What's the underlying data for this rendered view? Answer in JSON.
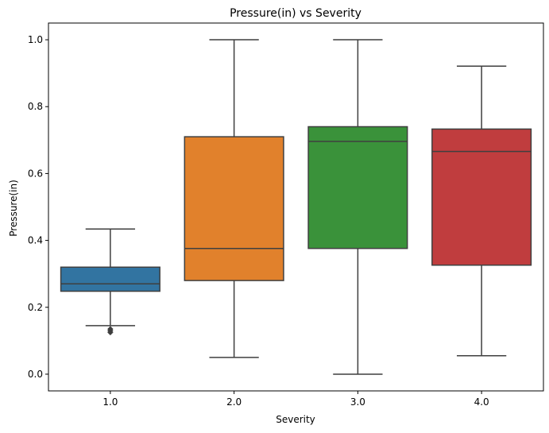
{
  "chart_data": {
    "type": "box",
    "title": "Pressure(in) vs Severity",
    "xlabel": "Severity",
    "ylabel": "Pressure(in)",
    "categories": [
      "1.0",
      "2.0",
      "3.0",
      "4.0"
    ],
    "ylim": [
      -0.05,
      1.05
    ],
    "yticks": [
      0.0,
      0.2,
      0.4,
      0.6,
      0.8,
      1.0
    ],
    "ytick_labels": [
      "0.0",
      "0.2",
      "0.4",
      "0.6",
      "0.8",
      "1.0"
    ],
    "grid": false,
    "boxes": [
      {
        "category": "1.0",
        "whisker_low": 0.145,
        "q1": 0.248,
        "median": 0.27,
        "q3": 0.32,
        "whisker_high": 0.434,
        "outliers": [
          0.125,
          0.13,
          0.135
        ],
        "color": "#3274a1"
      },
      {
        "category": "2.0",
        "whisker_low": 0.05,
        "q1": 0.28,
        "median": 0.376,
        "q3": 0.71,
        "whisker_high": 1.0,
        "outliers": [],
        "color": "#e1812c"
      },
      {
        "category": "3.0",
        "whisker_low": 0.0,
        "q1": 0.376,
        "median": 0.696,
        "q3": 0.74,
        "whisker_high": 1.0,
        "outliers": [],
        "color": "#3a923a"
      },
      {
        "category": "4.0",
        "whisker_low": 0.055,
        "q1": 0.326,
        "median": 0.666,
        "q3": 0.733,
        "whisker_high": 0.921,
        "outliers": [],
        "color": "#c03d3e"
      }
    ]
  }
}
